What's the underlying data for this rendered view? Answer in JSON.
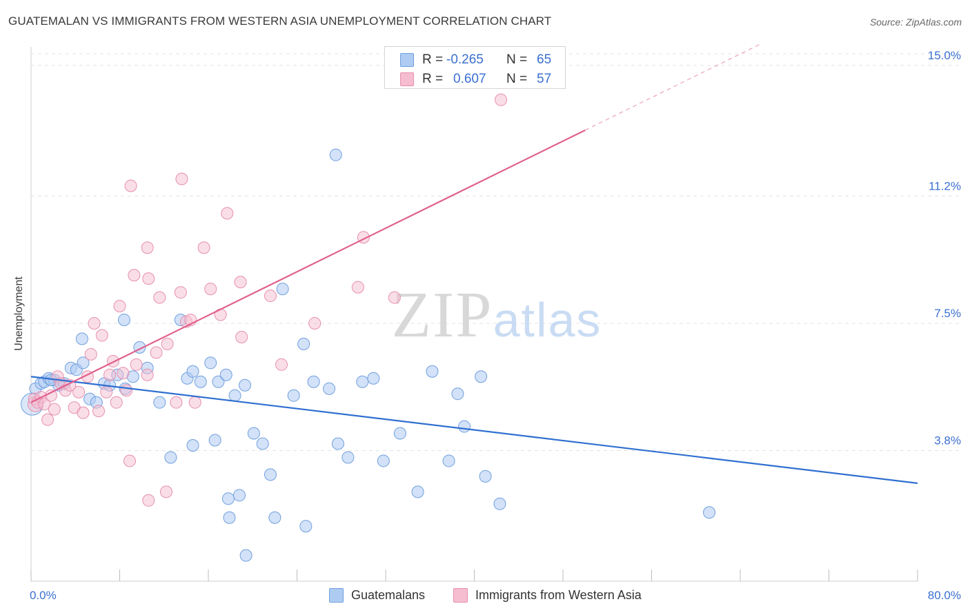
{
  "header": {
    "title": "GUATEMALAN VS IMMIGRANTS FROM WESTERN ASIA UNEMPLOYMENT CORRELATION CHART",
    "source": "Source: ZipAtlas.com"
  },
  "watermark": "ZIPatlas",
  "colors": {
    "series_a_fill": "#aecbf2",
    "series_a_stroke": "#6f9fde",
    "series_a_line": "#2f6fd0",
    "series_b_fill": "#f6bdd0",
    "series_b_stroke": "#e68fae",
    "series_b_line": "#e0608e",
    "value_text": "#3a6fd0",
    "grid": "#e3e3e3"
  },
  "legend_top": {
    "rows": [
      {
        "r_label": "R =",
        "r_value": "-0.265",
        "n_label": "N =",
        "n_value": "65"
      },
      {
        "r_label": "R =",
        "r_value": "0.607",
        "n_label": "N =",
        "n_value": "57"
      }
    ]
  },
  "legend_bottom": {
    "items": [
      {
        "label": "Guatemalans"
      },
      {
        "label": "Immigrants from Western Asia"
      }
    ]
  },
  "chart_data": {
    "type": "scatter",
    "title": "GUATEMALAN VS IMMIGRANTS FROM WESTERN ASIA UNEMPLOYMENT CORRELATION CHART",
    "xlabel": "",
    "ylabel": "Unemployment",
    "xlim": [
      0,
      80
    ],
    "ylim": [
      0,
      15.7
    ],
    "x_tick_labels": [
      "0.0%",
      "80.0%"
    ],
    "y_ticks": [
      3.8,
      7.5,
      11.2,
      15.0
    ],
    "y_tick_labels": [
      "3.8%",
      "7.5%",
      "11.2%",
      "15.0%"
    ],
    "grid": true,
    "legend_position": "top-center",
    "series": [
      {
        "name": "Guatemalans",
        "r": -0.265,
        "n": 65,
        "trend": {
          "x0": 0,
          "y0": 5.95,
          "x1": 80,
          "y1": 2.85,
          "solid_until": 80
        },
        "points": [
          [
            0.4,
            5.6
          ],
          [
            0.9,
            5.75
          ],
          [
            1.2,
            5.8
          ],
          [
            1.6,
            5.9
          ],
          [
            2.1,
            5.85
          ],
          [
            2.5,
            5.7
          ],
          [
            3.0,
            5.75
          ],
          [
            3.6,
            6.2
          ],
          [
            4.1,
            6.15
          ],
          [
            4.7,
            6.35
          ],
          [
            5.3,
            5.3
          ],
          [
            5.9,
            5.2
          ],
          [
            6.6,
            5.75
          ],
          [
            7.1,
            5.7
          ],
          [
            7.8,
            6.0
          ],
          [
            8.5,
            5.6
          ],
          [
            9.2,
            5.95
          ],
          [
            9.8,
            6.8
          ],
          [
            10.5,
            6.2
          ],
          [
            11.6,
            5.2
          ],
          [
            13.5,
            7.6
          ],
          [
            14.1,
            5.9
          ],
          [
            14.6,
            6.1
          ],
          [
            15.3,
            5.8
          ],
          [
            16.2,
            6.35
          ],
          [
            16.9,
            5.8
          ],
          [
            17.6,
            6.0
          ],
          [
            18.4,
            5.4
          ],
          [
            19.3,
            5.7
          ],
          [
            20.1,
            4.3
          ],
          [
            20.9,
            4.0
          ],
          [
            21.6,
            3.1
          ],
          [
            22.7,
            8.5
          ],
          [
            23.7,
            5.4
          ],
          [
            24.6,
            6.9
          ],
          [
            25.5,
            5.8
          ],
          [
            26.9,
            5.6
          ],
          [
            27.7,
            4.0
          ],
          [
            28.6,
            3.6
          ],
          [
            29.9,
            5.8
          ],
          [
            30.9,
            5.9
          ],
          [
            31.8,
            3.5
          ],
          [
            33.3,
            4.3
          ],
          [
            34.9,
            2.6
          ],
          [
            36.2,
            6.1
          ],
          [
            37.7,
            3.5
          ],
          [
            38.5,
            5.45
          ],
          [
            39.1,
            4.5
          ],
          [
            41.0,
            3.05
          ],
          [
            42.3,
            2.25
          ],
          [
            1.8,
            5.85
          ],
          [
            4.6,
            7.05
          ],
          [
            8.4,
            7.6
          ],
          [
            12.6,
            3.6
          ],
          [
            14.6,
            3.95
          ],
          [
            16.6,
            4.1
          ],
          [
            17.8,
            2.4
          ],
          [
            17.9,
            1.85
          ],
          [
            18.8,
            2.5
          ],
          [
            19.4,
            0.75
          ],
          [
            22.0,
            1.85
          ],
          [
            24.8,
            1.6
          ],
          [
            27.5,
            12.4
          ],
          [
            40.6,
            5.95
          ],
          [
            61.2,
            2.0
          ]
        ]
      },
      {
        "name": "Immigrants from Western Asia",
        "r": 0.607,
        "n": 57,
        "trend": {
          "x0": 0,
          "y0": 5.2,
          "x1": 66,
          "y1": 15.65,
          "solid_until": 50
        },
        "points": [
          [
            0.3,
            5.3
          ],
          [
            0.6,
            5.2
          ],
          [
            0.9,
            5.35
          ],
          [
            1.2,
            5.15
          ],
          [
            1.5,
            4.7
          ],
          [
            1.8,
            5.4
          ],
          [
            2.1,
            5.0
          ],
          [
            2.4,
            5.95
          ],
          [
            2.7,
            5.75
          ],
          [
            3.1,
            5.55
          ],
          [
            3.5,
            5.7
          ],
          [
            3.9,
            5.05
          ],
          [
            4.3,
            5.5
          ],
          [
            4.7,
            4.9
          ],
          [
            5.1,
            5.95
          ],
          [
            5.4,
            6.6
          ],
          [
            5.7,
            7.5
          ],
          [
            6.1,
            4.95
          ],
          [
            6.4,
            7.15
          ],
          [
            6.8,
            5.5
          ],
          [
            7.1,
            6.0
          ],
          [
            7.4,
            6.4
          ],
          [
            7.7,
            5.2
          ],
          [
            8.0,
            8.0
          ],
          [
            8.3,
            6.05
          ],
          [
            8.6,
            5.55
          ],
          [
            8.9,
            3.5
          ],
          [
            9.0,
            11.5
          ],
          [
            9.3,
            8.9
          ],
          [
            9.5,
            6.3
          ],
          [
            10.5,
            6.0
          ],
          [
            10.5,
            9.7
          ],
          [
            10.6,
            8.8
          ],
          [
            10.6,
            2.35
          ],
          [
            11.3,
            6.65
          ],
          [
            11.6,
            8.25
          ],
          [
            12.2,
            2.6
          ],
          [
            12.3,
            6.9
          ],
          [
            13.1,
            5.2
          ],
          [
            13.5,
            8.4
          ],
          [
            13.6,
            11.7
          ],
          [
            14.0,
            7.55
          ],
          [
            14.4,
            7.6
          ],
          [
            14.8,
            5.2
          ],
          [
            15.6,
            9.7
          ],
          [
            16.2,
            8.5
          ],
          [
            17.1,
            7.75
          ],
          [
            17.7,
            10.7
          ],
          [
            18.9,
            8.7
          ],
          [
            19.0,
            7.1
          ],
          [
            21.6,
            8.3
          ],
          [
            22.6,
            6.3
          ],
          [
            25.6,
            7.5
          ],
          [
            29.5,
            8.55
          ],
          [
            30.0,
            10.0
          ],
          [
            32.8,
            8.25
          ],
          [
            42.4,
            14.0
          ]
        ]
      }
    ]
  }
}
